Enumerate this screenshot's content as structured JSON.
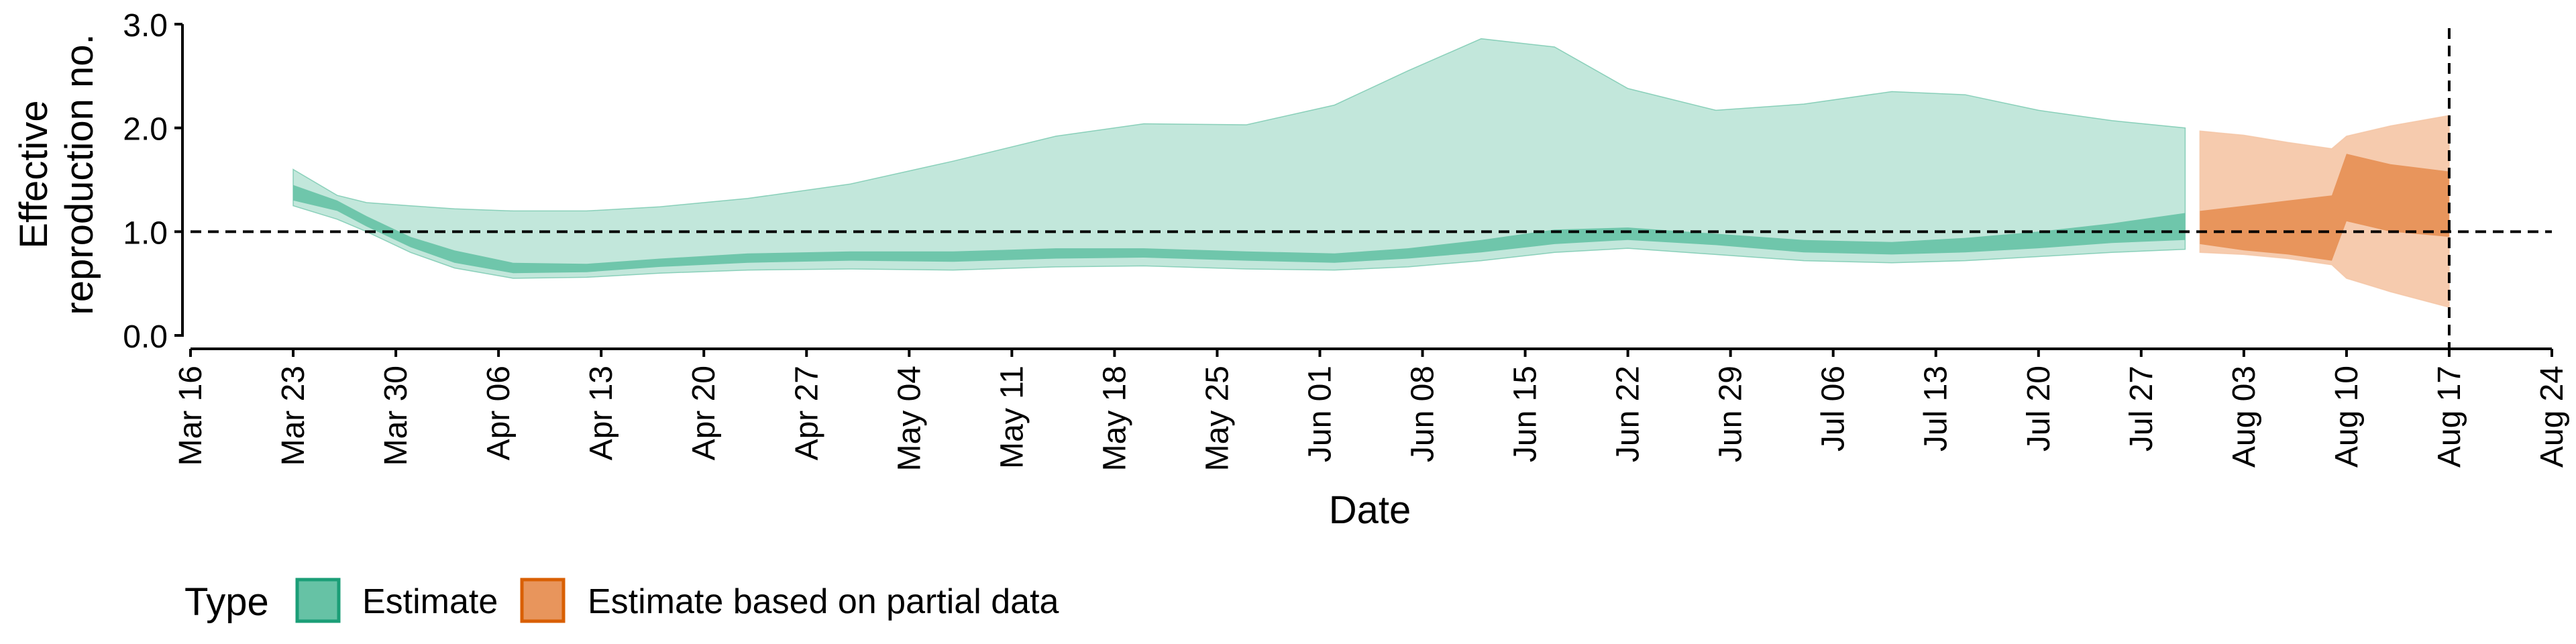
{
  "chart_data": {
    "type": "area",
    "xlabel": "Date",
    "ylabel_lines": [
      "Effective",
      "reproduction no."
    ],
    "ylim": [
      0,
      3
    ],
    "y_ticks": [
      {
        "value": 0,
        "label": "0.0"
      },
      {
        "value": 1,
        "label": "1.0"
      },
      {
        "value": 2,
        "label": "2.0"
      },
      {
        "value": 3,
        "label": "3.0"
      }
    ],
    "xlim": [
      "2020-03-16",
      "2020-08-24"
    ],
    "x_ticks": [
      {
        "date": "2020-03-16",
        "label": "Mar 16"
      },
      {
        "date": "2020-03-23",
        "label": "Mar 23"
      },
      {
        "date": "2020-03-30",
        "label": "Mar 30"
      },
      {
        "date": "2020-04-06",
        "label": "Apr 06"
      },
      {
        "date": "2020-04-13",
        "label": "Apr 13"
      },
      {
        "date": "2020-04-20",
        "label": "Apr 20"
      },
      {
        "date": "2020-04-27",
        "label": "Apr 27"
      },
      {
        "date": "2020-05-04",
        "label": "May 04"
      },
      {
        "date": "2020-05-11",
        "label": "May 11"
      },
      {
        "date": "2020-05-18",
        "label": "May 18"
      },
      {
        "date": "2020-05-25",
        "label": "May 25"
      },
      {
        "date": "2020-06-01",
        "label": "Jun 01"
      },
      {
        "date": "2020-06-08",
        "label": "Jun 08"
      },
      {
        "date": "2020-06-15",
        "label": "Jun 15"
      },
      {
        "date": "2020-06-22",
        "label": "Jun 22"
      },
      {
        "date": "2020-06-29",
        "label": "Jun 29"
      },
      {
        "date": "2020-07-06",
        "label": "Jul 06"
      },
      {
        "date": "2020-07-13",
        "label": "Jul 13"
      },
      {
        "date": "2020-07-20",
        "label": "Jul 20"
      },
      {
        "date": "2020-07-27",
        "label": "Jul 27"
      },
      {
        "date": "2020-08-03",
        "label": "Aug 03"
      },
      {
        "date": "2020-08-10",
        "label": "Aug 10"
      },
      {
        "date": "2020-08-17",
        "label": "Aug 17"
      },
      {
        "date": "2020-08-24",
        "label": "Aug 24"
      }
    ],
    "reference_lines": [
      {
        "axis": "y",
        "value": 1,
        "style": "dashed"
      },
      {
        "axis": "x",
        "value": "2020-08-17",
        "style": "dashed"
      }
    ],
    "grid": false,
    "legend": {
      "position": "bottom-left",
      "title": "Type",
      "entries": [
        {
          "label": "Estimate",
          "fill": "#66c2a5",
          "stroke": "#1b9e77"
        },
        {
          "label": "Estimate based on partial data",
          "fill": "#e8955c",
          "stroke": "#d95f02"
        }
      ]
    },
    "series": [
      {
        "name": "Estimate",
        "color_outer": "#66c2a5",
        "color_inner": "#66c2a5",
        "x": [
          "2020-03-23",
          "2020-03-26",
          "2020-03-28",
          "2020-03-31",
          "2020-04-03",
          "2020-04-07",
          "2020-04-12",
          "2020-04-17",
          "2020-04-23",
          "2020-04-30",
          "2020-05-07",
          "2020-05-14",
          "2020-05-20",
          "2020-05-27",
          "2020-06-02",
          "2020-06-07",
          "2020-06-12",
          "2020-06-17",
          "2020-06-22",
          "2020-06-28",
          "2020-07-04",
          "2020-07-10",
          "2020-07-15",
          "2020-07-20",
          "2020-07-25",
          "2020-07-30"
        ],
        "outer_lower": [
          1.25,
          1.12,
          1.0,
          0.8,
          0.65,
          0.55,
          0.56,
          0.6,
          0.63,
          0.64,
          0.63,
          0.66,
          0.67,
          0.64,
          0.63,
          0.66,
          0.72,
          0.8,
          0.84,
          0.78,
          0.72,
          0.7,
          0.72,
          0.76,
          0.8,
          0.83
        ],
        "outer_upper": [
          1.6,
          1.35,
          1.28,
          1.25,
          1.22,
          1.2,
          1.2,
          1.24,
          1.32,
          1.46,
          1.68,
          1.92,
          2.04,
          2.03,
          2.22,
          2.55,
          2.86,
          2.78,
          2.38,
          2.17,
          2.23,
          2.35,
          2.32,
          2.17,
          2.07,
          2.0
        ],
        "inner_lower": [
          1.3,
          1.2,
          1.05,
          0.85,
          0.7,
          0.6,
          0.61,
          0.66,
          0.7,
          0.72,
          0.71,
          0.74,
          0.75,
          0.72,
          0.7,
          0.74,
          0.8,
          0.88,
          0.92,
          0.87,
          0.8,
          0.78,
          0.8,
          0.84,
          0.89,
          0.92
        ],
        "inner_upper": [
          1.45,
          1.3,
          1.15,
          0.95,
          0.82,
          0.7,
          0.69,
          0.74,
          0.79,
          0.81,
          0.81,
          0.84,
          0.84,
          0.81,
          0.79,
          0.84,
          0.92,
          1.02,
          1.04,
          0.98,
          0.92,
          0.9,
          0.94,
          1.0,
          1.08,
          1.18
        ]
      },
      {
        "name": "Estimate based on partial data",
        "color_outer": "#f4c2a0",
        "color_inner": "#e8955c",
        "x": [
          "2020-07-31",
          "2020-08-03",
          "2020-08-06",
          "2020-08-09",
          "2020-08-10",
          "2020-08-13",
          "2020-08-17"
        ],
        "outer_lower": [
          0.8,
          0.78,
          0.74,
          0.68,
          0.55,
          0.42,
          0.27
        ],
        "outer_upper": [
          1.97,
          1.93,
          1.86,
          1.8,
          1.92,
          2.02,
          2.12
        ],
        "inner_lower": [
          0.88,
          0.82,
          0.78,
          0.72,
          1.1,
          1.0,
          0.95
        ],
        "inner_upper": [
          1.2,
          1.25,
          1.3,
          1.35,
          1.75,
          1.65,
          1.58
        ]
      }
    ]
  }
}
